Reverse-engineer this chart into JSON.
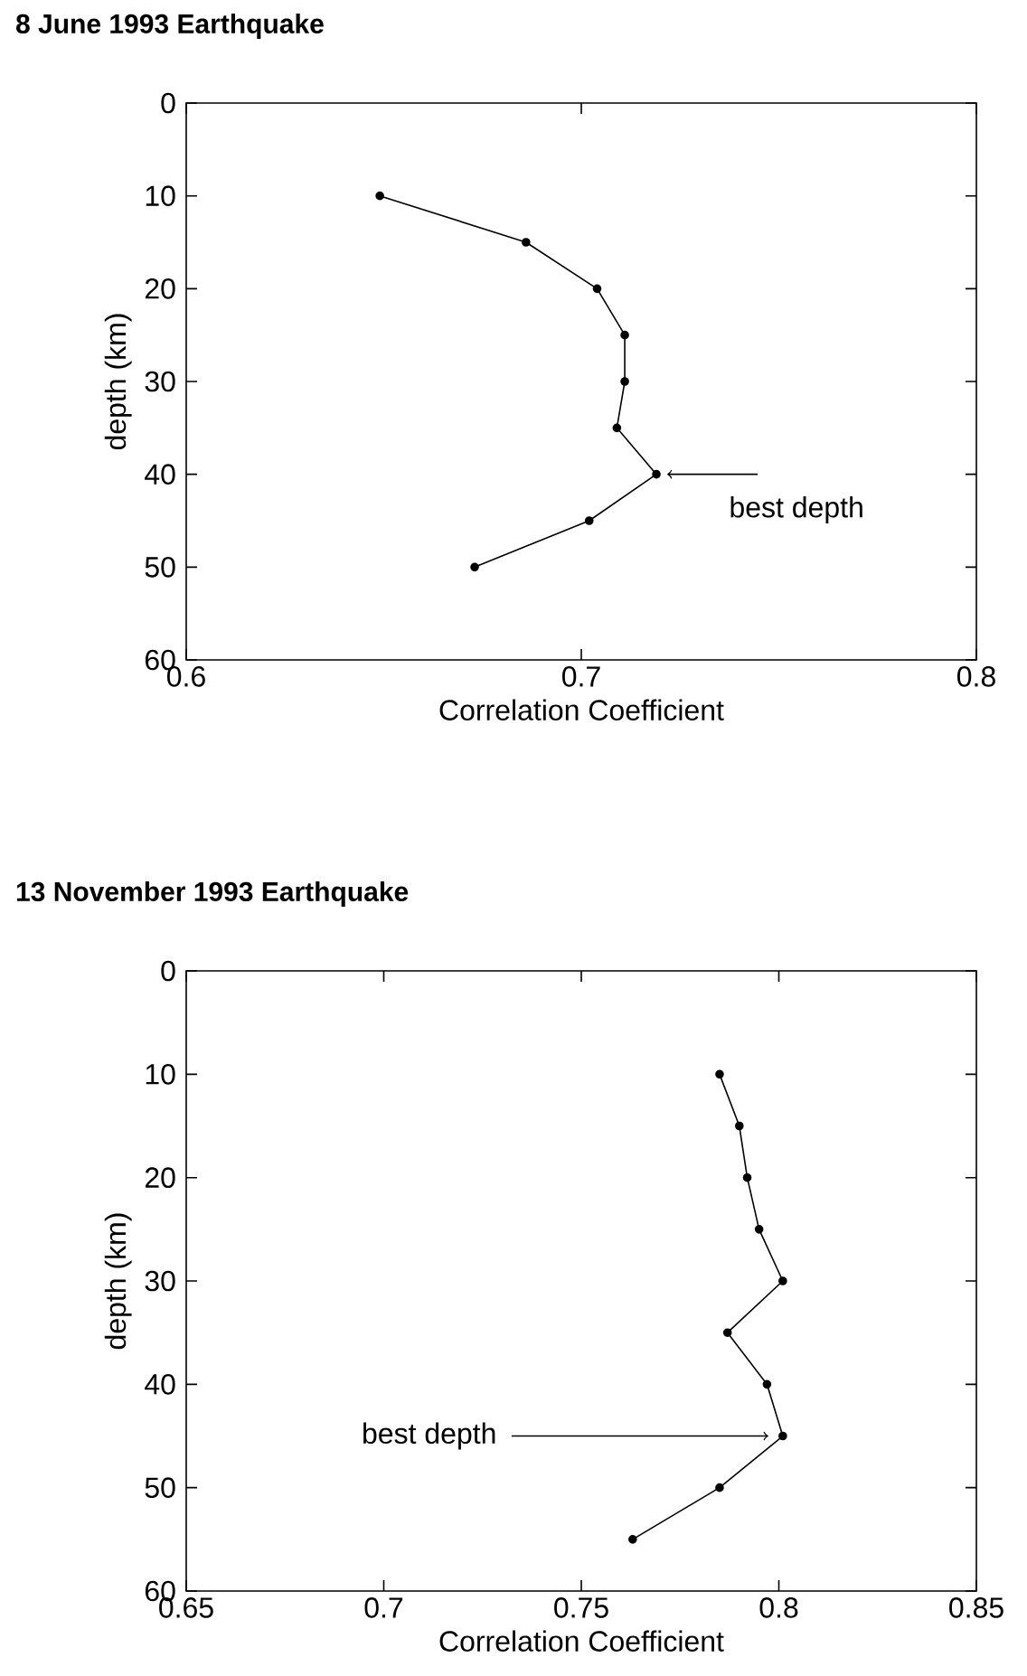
{
  "chart_data": [
    {
      "type": "line",
      "title": "8 June 1993 Earthquake",
      "xlabel": "Correlation Coefficient",
      "ylabel": "depth (km)",
      "x": [
        0.649,
        0.686,
        0.704,
        0.711,
        0.711,
        0.709,
        0.719,
        0.702,
        0.673
      ],
      "values": [
        10,
        15,
        20,
        25,
        30,
        35,
        40,
        45,
        50
      ],
      "color": "#000000",
      "marker": "circle",
      "line_style": "solid",
      "xlim": [
        0.6,
        0.8
      ],
      "xticks": [
        0.6,
        0.7,
        0.8
      ],
      "ylim": [
        60,
        0
      ],
      "yticks": [
        0,
        10,
        20,
        30,
        40,
        50,
        60
      ],
      "annotations": [
        {
          "text": "best depth",
          "x": 0.719,
          "y": 40
        }
      ]
    },
    {
      "type": "line",
      "title": "13 November 1993 Earthquake",
      "xlabel": "Correlation Coefficient",
      "ylabel": "depth (km)",
      "x": [
        0.785,
        0.79,
        0.792,
        0.795,
        0.801,
        0.787,
        0.797,
        0.801,
        0.785,
        0.763
      ],
      "values": [
        10,
        15,
        20,
        25,
        30,
        35,
        40,
        45,
        50,
        55
      ],
      "color": "#000000",
      "marker": "circle",
      "line_style": "solid",
      "xlim": [
        0.65,
        0.85
      ],
      "xticks": [
        0.65,
        0.7,
        0.75,
        0.8,
        0.85
      ],
      "ylim": [
        60,
        0
      ],
      "yticks": [
        0,
        10,
        20,
        30,
        40,
        50,
        60
      ],
      "annotations": [
        {
          "text": "best depth",
          "x": 0.801,
          "y": 45
        }
      ]
    }
  ]
}
